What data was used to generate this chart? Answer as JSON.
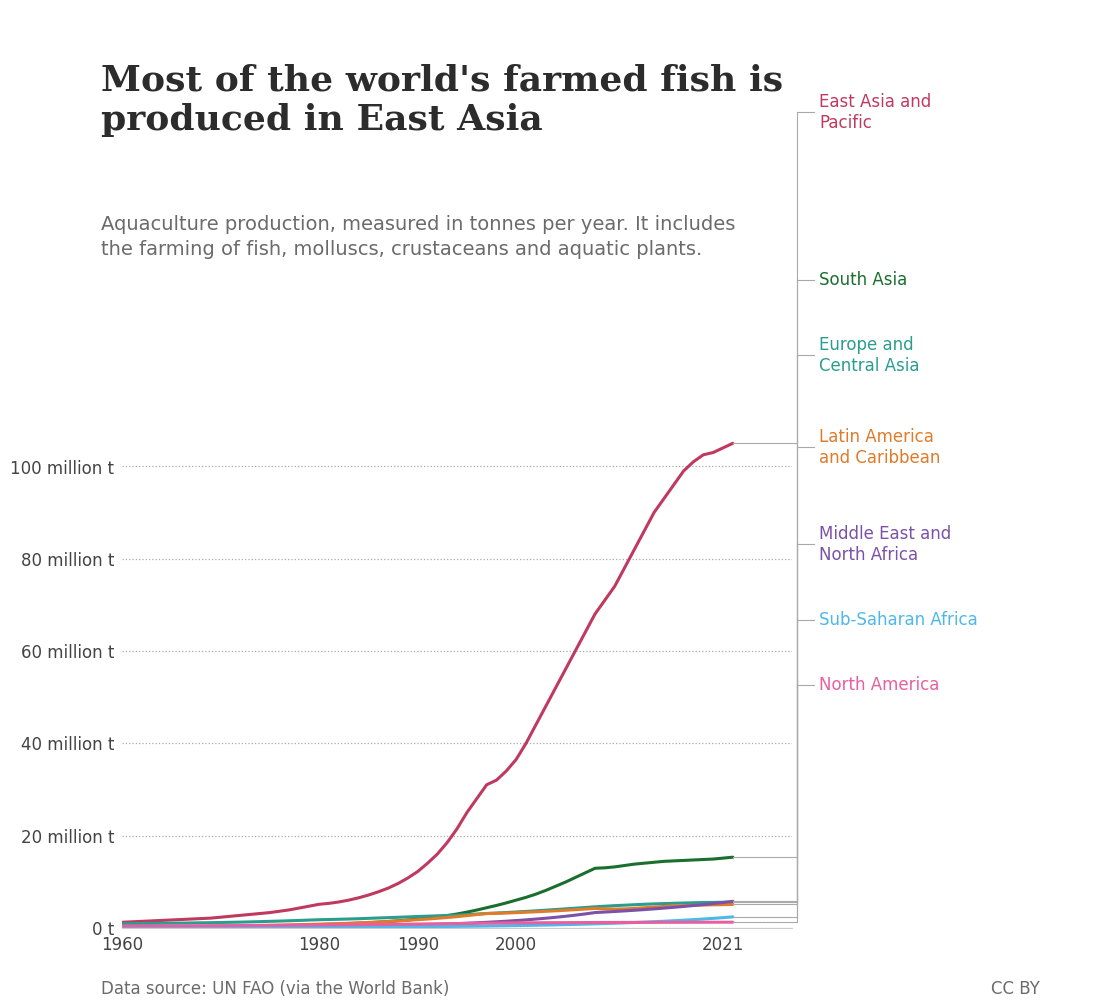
{
  "title": "Most of the world's farmed fish is\nproduced in East Asia",
  "subtitle": "Aquaculture production, measured in tonnes per year. It includes\nthe farming of fish, molluscs, crustaceans and aquatic plants.",
  "source": "Data source: UN FAO (via the World Bank)",
  "cc": "CC BY",
  "background_color": "#ffffff",
  "title_color": "#2c2c2c",
  "subtitle_color": "#6b6b6b",
  "source_color": "#6b6b6b",
  "ytick_labels": [
    "0 t",
    "20 million t",
    "40 million t",
    "60 million t",
    "80 million t",
    "100 million t"
  ],
  "ytick_values": [
    0,
    20000000,
    40000000,
    60000000,
    80000000,
    100000000
  ],
  "xlim": [
    1960,
    2028
  ],
  "ylim": [
    0,
    110000000
  ],
  "regions": [
    "East Asia and\nPacific",
    "South Asia",
    "Europe and\nCentral Asia",
    "Latin America\nand Caribbean",
    "Middle East and\nNorth Africa",
    "Sub-Saharan Africa",
    "North America"
  ],
  "region_colors": [
    "#c0395e",
    "#1a6e2e",
    "#2a9d8f",
    "#e07b2a",
    "#7b52a8",
    "#4eb8e8",
    "#e85fa0"
  ],
  "years": [
    1960,
    1961,
    1962,
    1963,
    1964,
    1965,
    1966,
    1967,
    1968,
    1969,
    1970,
    1971,
    1972,
    1973,
    1974,
    1975,
    1976,
    1977,
    1978,
    1979,
    1980,
    1981,
    1982,
    1983,
    1984,
    1985,
    1986,
    1987,
    1988,
    1989,
    1990,
    1991,
    1992,
    1993,
    1994,
    1995,
    1996,
    1997,
    1998,
    1999,
    2000,
    2001,
    2002,
    2003,
    2004,
    2005,
    2006,
    2007,
    2008,
    2009,
    2010,
    2011,
    2012,
    2013,
    2014,
    2015,
    2016,
    2017,
    2018,
    2019,
    2020,
    2021,
    2022
  ],
  "data": {
    "East Asia and\nPacific": [
      1200000,
      1300000,
      1400000,
      1500000,
      1600000,
      1700000,
      1800000,
      1900000,
      2000000,
      2100000,
      2300000,
      2500000,
      2700000,
      2900000,
      3100000,
      3300000,
      3600000,
      3900000,
      4300000,
      4700000,
      5100000,
      5300000,
      5600000,
      6000000,
      6500000,
      7100000,
      7800000,
      8600000,
      9600000,
      10800000,
      12200000,
      14000000,
      16000000,
      18500000,
      21500000,
      25000000,
      28000000,
      31000000,
      32000000,
      34000000,
      36500000,
      40000000,
      44000000,
      48000000,
      52000000,
      56000000,
      60000000,
      64000000,
      68000000,
      71000000,
      74000000,
      78000000,
      82000000,
      86000000,
      90000000,
      93000000,
      96000000,
      99000000,
      101000000,
      102500000,
      103000000,
      104000000,
      105000000
    ],
    "South Asia": [
      100000,
      110000,
      120000,
      130000,
      140000,
      150000,
      160000,
      175000,
      190000,
      210000,
      230000,
      260000,
      290000,
      330000,
      370000,
      420000,
      470000,
      520000,
      580000,
      640000,
      700000,
      760000,
      830000,
      910000,
      1000000,
      1100000,
      1220000,
      1360000,
      1520000,
      1700000,
      1900000,
      2100000,
      2350000,
      2650000,
      3000000,
      3400000,
      3850000,
      4350000,
      4850000,
      5400000,
      6000000,
      6600000,
      7300000,
      8100000,
      9000000,
      9900000,
      10900000,
      11900000,
      12900000,
      13000000,
      13200000,
      13500000,
      13800000,
      14000000,
      14200000,
      14400000,
      14500000,
      14600000,
      14700000,
      14800000,
      14900000,
      15100000,
      15300000
    ],
    "Europe and\nCentral Asia": [
      900000,
      920000,
      940000,
      960000,
      980000,
      1000000,
      1020000,
      1050000,
      1080000,
      1110000,
      1150000,
      1190000,
      1230000,
      1280000,
      1340000,
      1400000,
      1460000,
      1530000,
      1600000,
      1680000,
      1750000,
      1800000,
      1850000,
      1910000,
      1970000,
      2050000,
      2130000,
      2200000,
      2280000,
      2360000,
      2450000,
      2520000,
      2600000,
      2680000,
      2770000,
      2870000,
      2980000,
      3090000,
      3200000,
      3310000,
      3430000,
      3550000,
      3680000,
      3820000,
      3960000,
      4100000,
      4250000,
      4400000,
      4550000,
      4680000,
      4800000,
      4900000,
      5000000,
      5100000,
      5180000,
      5250000,
      5310000,
      5370000,
      5430000,
      5480000,
      5500000,
      5530000,
      5560000
    ],
    "Latin America\nand Caribbean": [
      200000,
      210000,
      220000,
      235000,
      250000,
      265000,
      280000,
      300000,
      320000,
      345000,
      370000,
      400000,
      430000,
      465000,
      500000,
      540000,
      580000,
      625000,
      675000,
      730000,
      790000,
      850000,
      915000,
      990000,
      1070000,
      1160000,
      1260000,
      1370000,
      1490000,
      1620000,
      1760000,
      1900000,
      2060000,
      2230000,
      2420000,
      2640000,
      2870000,
      3100000,
      3140000,
      3200000,
      3280000,
      3370000,
      3470000,
      3570000,
      3680000,
      3800000,
      3930000,
      4060000,
      4200000,
      4100000,
      4050000,
      4100000,
      4200000,
      4350000,
      4500000,
      4620000,
      4720000,
      4800000,
      4870000,
      4930000,
      4980000,
      5020000,
      5060000
    ],
    "Middle East and\nNorth Africa": [
      50000,
      52000,
      55000,
      58000,
      61000,
      65000,
      70000,
      75000,
      81000,
      88000,
      96000,
      105000,
      115000,
      126000,
      138000,
      152000,
      167000,
      184000,
      202000,
      222000,
      244000,
      268000,
      294000,
      323000,
      355000,
      390000,
      428000,
      470000,
      516000,
      566000,
      621000,
      682000,
      748000,
      821000,
      901000,
      990000,
      1086000,
      1191000,
      1305000,
      1431000,
      1570000,
      1720000,
      1889000,
      2073000,
      2274000,
      2495000,
      2738000,
      3005000,
      3298000,
      3416000,
      3534000,
      3661000,
      3798000,
      3944000,
      4100000,
      4266000,
      4442000,
      4628000,
      4825000,
      5033000,
      5253000,
      5486000,
      5731000
    ],
    "Sub-Saharan Africa": [
      30000,
      32000,
      34000,
      36000,
      38000,
      41000,
      44000,
      47000,
      50000,
      54000,
      58000,
      62000,
      66000,
      71000,
      76000,
      82000,
      88000,
      94000,
      101000,
      108000,
      116000,
      124000,
      133000,
      143000,
      153000,
      164000,
      176000,
      189000,
      203000,
      218000,
      234000,
      251000,
      270000,
      290000,
      311000,
      334000,
      359000,
      386000,
      415000,
      446000,
      479000,
      515000,
      554000,
      595000,
      640000,
      688000,
      740000,
      796000,
      856000,
      920000,
      990000,
      1065000,
      1145000,
      1232000,
      1325000,
      1424000,
      1531000,
      1646000,
      1770000,
      1903000,
      2046000,
      2200000,
      2365000
    ],
    "North America": [
      400000,
      405000,
      410000,
      415000,
      420000,
      425000,
      432000,
      440000,
      448000,
      457000,
      467000,
      477000,
      488000,
      500000,
      512000,
      525000,
      539000,
      554000,
      570000,
      587000,
      605000,
      622000,
      640000,
      659000,
      679000,
      700000,
      722000,
      745000,
      769000,
      794000,
      820000,
      845000,
      870000,
      896000,
      922000,
      949000,
      977000,
      1005000,
      1020000,
      1040000,
      1060000,
      1075000,
      1090000,
      1100000,
      1110000,
      1120000,
      1130000,
      1140000,
      1150000,
      1155000,
      1160000,
      1165000,
      1170000,
      1175000,
      1180000,
      1185000,
      1190000,
      1195000,
      1200000,
      1205000,
      1210000,
      1215000,
      1220000
    ]
  },
  "owid_box_color": "#1a3a5c",
  "owid_bar_color": "#c0394a"
}
